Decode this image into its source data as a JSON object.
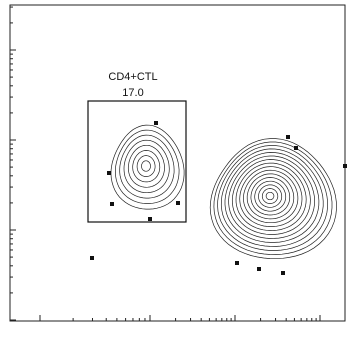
{
  "chart_data": {
    "type": "contour",
    "gate": {
      "name": "CD4+CTL",
      "label": "17.0"
    }
  }
}
